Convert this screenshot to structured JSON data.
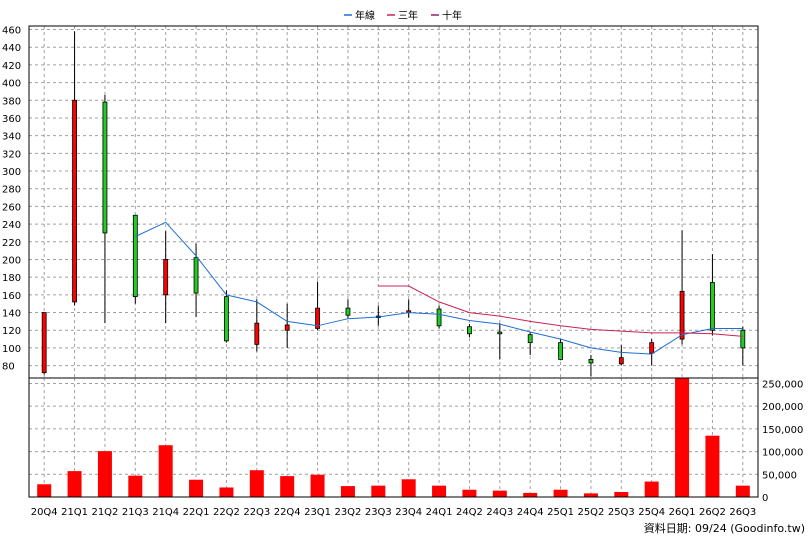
{
  "legend": {
    "items": [
      {
        "label": "年線",
        "color": "#1f6fd0"
      },
      {
        "label": "三年",
        "color": "#cc2255"
      },
      {
        "label": "十年",
        "color": "#992266"
      }
    ]
  },
  "footer": {
    "source": "資料日期: 09/24  (Goodinfo.tw)"
  },
  "colors": {
    "up": "#ff0000",
    "down": "#22cc22",
    "volume": "#ff0000",
    "doji": "#000000"
  },
  "chart_data": {
    "type": "candlestick",
    "categories": [
      "20Q4",
      "21Q1",
      "21Q2",
      "21Q3",
      "21Q4",
      "22Q1",
      "22Q2",
      "22Q3",
      "22Q4",
      "23Q1",
      "23Q2",
      "23Q3",
      "23Q4",
      "24Q1",
      "24Q2",
      "24Q3",
      "24Q4",
      "25Q1",
      "25Q2",
      "25Q3",
      "25Q4",
      "26Q1",
      "26Q2",
      "26Q3"
    ],
    "price": {
      "ylim": [
        66,
        464
      ],
      "ticks": [
        80,
        100,
        120,
        140,
        160,
        180,
        200,
        220,
        240,
        260,
        280,
        300,
        320,
        340,
        360,
        380,
        400,
        420,
        440,
        460
      ],
      "ohlc": [
        {
          "o": 72,
          "h": 140,
          "l": 70,
          "c": 140
        },
        {
          "o": 152,
          "h": 458,
          "l": 148,
          "c": 380
        },
        {
          "o": 378,
          "h": 386,
          "l": 128,
          "c": 230
        },
        {
          "o": 250,
          "h": 250,
          "l": 150,
          "c": 158
        },
        {
          "o": 160,
          "h": 232,
          "l": 128,
          "c": 200
        },
        {
          "o": 202,
          "h": 218,
          "l": 135,
          "c": 162
        },
        {
          "o": 158,
          "h": 165,
          "l": 106,
          "c": 108
        },
        {
          "o": 104,
          "h": 155,
          "l": 96,
          "c": 128
        },
        {
          "o": 120,
          "h": 150,
          "l": 100,
          "c": 126
        },
        {
          "o": 122,
          "h": 175,
          "l": 120,
          "c": 145
        },
        {
          "o": 145,
          "h": 155,
          "l": 133,
          "c": 137
        },
        {
          "o": 136,
          "h": 148,
          "l": 125,
          "c": 136
        },
        {
          "o": 140,
          "h": 155,
          "l": 134,
          "c": 142
        },
        {
          "o": 144,
          "h": 148,
          "l": 122,
          "c": 125
        },
        {
          "o": 124,
          "h": 127,
          "l": 112,
          "c": 116
        },
        {
          "o": 118,
          "h": 128,
          "l": 87,
          "c": 116
        },
        {
          "o": 115,
          "h": 118,
          "l": 92,
          "c": 106
        },
        {
          "o": 106,
          "h": 110,
          "l": 86,
          "c": 87
        },
        {
          "o": 87,
          "h": 92,
          "l": 68,
          "c": 83
        },
        {
          "o": 82,
          "h": 103,
          "l": 80,
          "c": 89
        },
        {
          "o": 94,
          "h": 110,
          "l": 80,
          "c": 106
        },
        {
          "o": 110,
          "h": 233,
          "l": 104,
          "c": 164
        },
        {
          "o": 174,
          "h": 206,
          "l": 114,
          "c": 120
        },
        {
          "o": 120,
          "h": 124,
          "l": 80,
          "c": 100
        }
      ],
      "series": [
        {
          "name": "年線",
          "start": 3,
          "values": [
            226,
            242,
            204,
            160,
            152,
            130,
            125,
            133,
            135,
            140,
            138,
            131,
            127,
            118,
            110,
            100,
            95,
            93,
            115,
            122,
            122
          ]
        },
        {
          "name": "三年",
          "start": 11,
          "values": [
            170,
            170,
            152,
            140,
            136,
            130,
            125,
            121,
            119,
            117,
            117,
            116,
            113
          ]
        }
      ]
    },
    "volume": {
      "ylim": [
        0,
        262000
      ],
      "ticks": [
        0,
        50000,
        100000,
        150000,
        200000,
        250000
      ],
      "tick_labels": [
        "0",
        "50,000",
        "100,000",
        "150,000",
        "200,000",
        "250,000"
      ],
      "values": [
        28000,
        57000,
        101000,
        47000,
        114000,
        38000,
        21000,
        59000,
        46000,
        49000,
        24000,
        25000,
        39000,
        25000,
        16000,
        14000,
        9000,
        16000,
        8000,
        11000,
        34000,
        262000,
        135000,
        25000
      ]
    }
  }
}
